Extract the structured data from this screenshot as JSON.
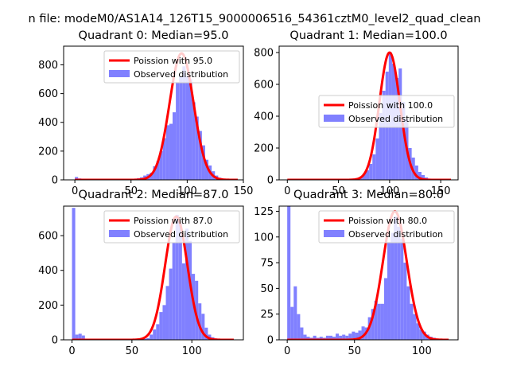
{
  "figure": {
    "suptitle": "n file: modeM0/AS1A14_126T15_9000006516_54361cztM0_level2_quad_clean"
  },
  "colors": {
    "hist": "#8080ff",
    "fit": "#ff0000",
    "axes": "#000000",
    "background": "#ffffff"
  },
  "chart_data": [
    {
      "type": "histogram",
      "title": "Quadrant 0: Median=95.0",
      "xlim": [
        -10,
        150
      ],
      "ylim": [
        0,
        930
      ],
      "xticks": [
        "0",
        "50",
        "100",
        "150"
      ],
      "xtick_values": [
        0,
        50,
        100,
        150
      ],
      "yticks": [
        "0",
        "200",
        "400",
        "600",
        "800"
      ],
      "ytick_values": [
        0,
        200,
        400,
        600,
        800
      ],
      "legend": {
        "location": "upper-right",
        "entries": [
          "Poission with 95.0",
          "Observed distribution"
        ]
      },
      "poisson_mean": 95.0,
      "fit_x_range": [
        0,
        145
      ],
      "fit_peak": 880,
      "fit_sigma": 10.7,
      "bin_edges": [
        0,
        2.9,
        5.8,
        8.7,
        11.6,
        14.5,
        17.4,
        20.3,
        23.2,
        26.1,
        29.0,
        31.9,
        34.8,
        37.7,
        40.6,
        43.5,
        46.4,
        49.3,
        52.2,
        55.1,
        58.0,
        60.9,
        63.8,
        66.7,
        69.6,
        72.5,
        75.4,
        78.3,
        81.2,
        84.1,
        87.0,
        89.9,
        92.8,
        95.7,
        98.6,
        101.5,
        104.4,
        107.3,
        110.2,
        113.1,
        116.0,
        118.9,
        121.8,
        124.7,
        127.6,
        130.5,
        133.4,
        136.3,
        139.2,
        142.1,
        145.0
      ],
      "counts": [
        20,
        10,
        5,
        3,
        2,
        2,
        1,
        1,
        1,
        1,
        1,
        2,
        2,
        2,
        2,
        3,
        3,
        5,
        8,
        12,
        18,
        30,
        40,
        50,
        95,
        130,
        200,
        290,
        380,
        390,
        470,
        680,
        720,
        790,
        720,
        700,
        540,
        440,
        340,
        240,
        140,
        100,
        60,
        30,
        15,
        8,
        4,
        2,
        1,
        0
      ]
    },
    {
      "type": "histogram",
      "title": "Quadrant 1: Median=100.0",
      "xlim": [
        -8,
        167
      ],
      "ylim": [
        0,
        840
      ],
      "xticks": [
        "0",
        "50",
        "100",
        "150"
      ],
      "xtick_values": [
        0,
        50,
        100,
        150
      ],
      "yticks": [
        "0",
        "200",
        "400",
        "600",
        "800"
      ],
      "ytick_values": [
        0,
        200,
        400,
        600,
        800
      ],
      "legend": {
        "location": "center-right",
        "entries": [
          "Poission with 100.0",
          "Observed distribution"
        ]
      },
      "poisson_mean": 100.0,
      "fit_x_range": [
        0,
        160
      ],
      "fit_peak": 800,
      "fit_sigma": 10.0,
      "bin_edges": [
        0,
        3.2,
        6.4,
        9.6,
        12.8,
        16.0,
        19.2,
        22.4,
        25.6,
        28.8,
        32.0,
        35.2,
        38.4,
        41.6,
        44.8,
        48.0,
        51.2,
        54.4,
        57.6,
        60.8,
        64.0,
        67.2,
        70.4,
        73.6,
        76.8,
        80.0,
        83.2,
        86.4,
        89.6,
        92.8,
        96.0,
        99.2,
        102.4,
        105.6,
        108.8,
        112.0,
        115.2,
        118.4,
        121.6,
        124.8,
        128.0,
        131.2,
        134.4,
        137.6,
        140.8,
        144.0,
        147.2,
        150.4,
        153.6,
        156.8,
        160.0
      ],
      "counts": [
        2,
        1,
        1,
        1,
        1,
        1,
        1,
        1,
        1,
        1,
        1,
        1,
        1,
        1,
        1,
        1,
        2,
        2,
        3,
        5,
        8,
        12,
        20,
        40,
        60,
        100,
        160,
        260,
        420,
        560,
        680,
        800,
        730,
        640,
        700,
        490,
        380,
        200,
        140,
        90,
        50,
        30,
        15,
        8,
        4,
        2,
        1,
        1,
        0,
        0
      ]
    },
    {
      "type": "histogram",
      "title": "Quadrant 2: Median=87.0",
      "xlim": [
        -7,
        143
      ],
      "ylim": [
        0,
        770
      ],
      "xticks": [
        "0",
        "50",
        "100"
      ],
      "xtick_values": [
        0,
        50,
        100
      ],
      "yticks": [
        "0",
        "200",
        "400",
        "600"
      ],
      "ytick_values": [
        0,
        200,
        400,
        600
      ],
      "legend": {
        "location": "upper-right",
        "entries": [
          "Poission with 87.0",
          "Observed distribution"
        ]
      },
      "poisson_mean": 87.0,
      "fit_x_range": [
        0,
        135
      ],
      "fit_peak": 710,
      "fit_sigma": 9.3,
      "bin_edges": [
        0,
        2.7,
        5.4,
        8.1,
        10.8,
        13.5,
        16.2,
        18.9,
        21.6,
        24.3,
        27.0,
        29.7,
        32.4,
        35.1,
        37.8,
        40.5,
        43.2,
        45.9,
        48.6,
        51.3,
        54.0,
        56.7,
        59.4,
        62.1,
        64.8,
        67.5,
        70.2,
        72.9,
        75.6,
        78.3,
        81.0,
        83.7,
        86.4,
        89.1,
        91.8,
        94.5,
        97.2,
        99.9,
        102.6,
        105.3,
        108.0,
        110.7,
        113.4,
        116.1,
        118.8,
        121.5,
        124.2,
        126.9,
        129.6,
        132.3,
        135.0
      ],
      "counts": [
        760,
        30,
        35,
        25,
        4,
        3,
        2,
        2,
        1,
        1,
        1,
        1,
        1,
        1,
        1,
        1,
        1,
        2,
        2,
        4,
        2,
        5,
        6,
        10,
        30,
        60,
        90,
        160,
        200,
        310,
        410,
        560,
        720,
        670,
        440,
        640,
        570,
        380,
        340,
        210,
        150,
        70,
        30,
        15,
        8,
        4,
        2,
        1,
        1,
        0
      ]
    },
    {
      "type": "histogram",
      "title": "Quadrant 3: Median=80.0",
      "xlim": [
        -6,
        127
      ],
      "ylim": [
        0,
        130
      ],
      "xticks": [
        "0",
        "50",
        "100"
      ],
      "xtick_values": [
        0,
        50,
        100
      ],
      "yticks": [
        "0",
        "25",
        "50",
        "75",
        "100",
        "125"
      ],
      "ytick_values": [
        0,
        25,
        50,
        75,
        100,
        125
      ],
      "legend": {
        "location": "upper-right",
        "entries": [
          "Poission with 80.0",
          "Observed distribution"
        ]
      },
      "poisson_mean": 80.0,
      "fit_x_range": [
        0,
        120
      ],
      "fit_peak": 125,
      "fit_sigma": 8.9,
      "bin_edges": [
        0,
        2.4,
        4.8,
        7.2,
        9.6,
        12.0,
        14.4,
        16.8,
        19.2,
        21.6,
        24.0,
        26.4,
        28.8,
        31.2,
        33.6,
        36.0,
        38.4,
        40.8,
        43.2,
        45.6,
        48.0,
        50.4,
        52.8,
        55.2,
        57.6,
        60.0,
        62.4,
        64.8,
        67.2,
        69.6,
        72.0,
        74.4,
        76.8,
        79.2,
        81.6,
        84.0,
        86.4,
        88.8,
        91.2,
        93.6,
        96.0,
        98.4,
        100.8,
        103.2,
        105.6,
        108.0,
        110.4,
        112.8,
        115.2,
        117.6,
        120.0
      ],
      "counts": [
        130,
        32,
        52,
        25,
        12,
        5,
        3,
        2,
        4,
        2,
        3,
        2,
        4,
        4,
        3,
        6,
        4,
        5,
        4,
        6,
        8,
        7,
        9,
        13,
        12,
        22,
        30,
        38,
        35,
        35,
        60,
        95,
        104,
        120,
        110,
        98,
        75,
        52,
        35,
        25,
        16,
        10,
        8,
        5,
        3,
        2,
        1,
        1,
        0,
        0
      ]
    }
  ]
}
